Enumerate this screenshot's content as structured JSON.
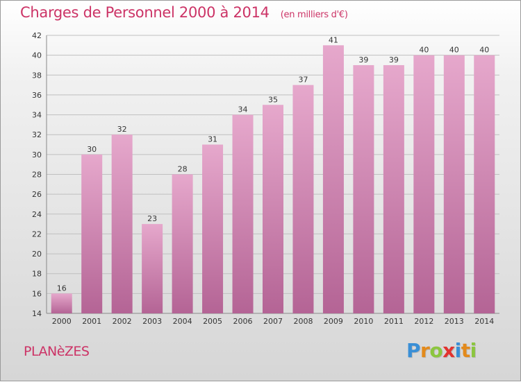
{
  "header": {
    "title": "Charges de Personnel 2000 à 2014",
    "unit": "(en milliers d'€)"
  },
  "footer": {
    "place": "PLANèZES",
    "logo_letters": [
      "P",
      "r",
      "o",
      "x",
      "i",
      "t",
      "i"
    ],
    "logo_colors": [
      "#3a8fd6",
      "#e38a1b",
      "#8cc63f",
      "#e2332f",
      "#3a8fd6",
      "#e38a1b",
      "#8cc63f"
    ]
  },
  "colors": {
    "accent": "#cc3366",
    "bar_top": "#e6a8cc",
    "bar_bottom": "#b46495",
    "grid": "#bfbfbf",
    "label": "#333333"
  },
  "chart_data": {
    "type": "bar",
    "title": "Charges de Personnel 2000 à 2014",
    "subtitle": "(en milliers d'€)",
    "xlabel": "",
    "ylabel": "",
    "categories": [
      "2000",
      "2001",
      "2002",
      "2003",
      "2004",
      "2005",
      "2006",
      "2007",
      "2008",
      "2009",
      "2010",
      "2011",
      "2012",
      "2013",
      "2014"
    ],
    "values": [
      16,
      30,
      32,
      23,
      28,
      31,
      34,
      35,
      37,
      41,
      39,
      39,
      40,
      40,
      40
    ],
    "ylim": [
      14,
      42
    ],
    "yticks": [
      14,
      16,
      18,
      20,
      22,
      24,
      26,
      28,
      30,
      32,
      34,
      36,
      38,
      40,
      42
    ],
    "grid": true,
    "legend": "none"
  }
}
